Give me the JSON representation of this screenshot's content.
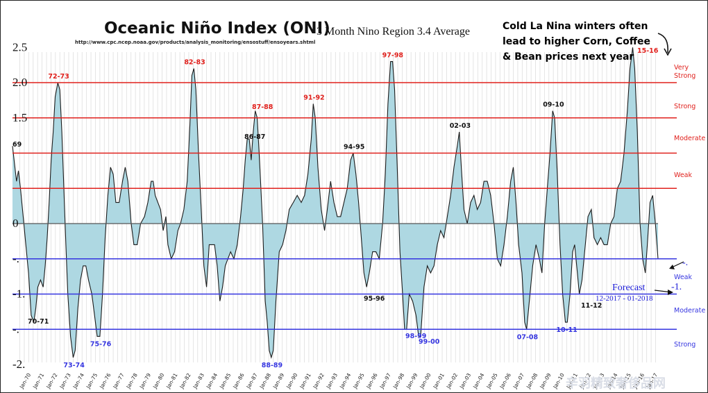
{
  "page": {
    "watermark": "辛羽精致奢侈品网"
  },
  "chart_data": {
    "type": "area",
    "title": "Oceanic Niño Index (ONI)",
    "subtitle": "3 Month Nino Region 3.4 Average",
    "source_url": "http://www.cpc.ncep.noaa.gov/products/analysis_monitoring/ensostuff/ensoyears.shtml",
    "annotation": "Cold La Nina winters often lead to higher Corn, Coffee & Bean prices next year",
    "ylim": [
      -2.5,
      2.5
    ],
    "y_tick_labels": [
      {
        "value": 2.5,
        "label": "2.5"
      },
      {
        "value": 2.0,
        "label": "2.0"
      },
      {
        "value": 1.5,
        "label": "1.5"
      },
      {
        "value": 0.0,
        "label": "0"
      },
      {
        "value": -0.5,
        "label": "-."
      },
      {
        "value": -1.0,
        "label": "-1."
      },
      {
        "value": -1.5,
        "label": "-."
      },
      {
        "value": -2.0,
        "label": "-2."
      }
    ],
    "x_tick_labels": [
      "Jan-70",
      "Jan-71",
      "Jan-72",
      "Jan-73",
      "Jan-74",
      "Jan-75",
      "Jan-76",
      "Jan-77",
      "Jan-78",
      "Jan-79",
      "Jan-80",
      "Jan-81",
      "Jan-82",
      "Jan-83",
      "Jan-84",
      "Jan-85",
      "Jan-86",
      "Jan-87",
      "Jan-88",
      "Jan-89",
      "Jan-90",
      "Jan-91",
      "Jan-92",
      "Jan-93",
      "Jan-94",
      "Jan-95",
      "Jan-96",
      "Jan-97",
      "Jan-98",
      "Jan-99",
      "Jan-00",
      "Jan-01",
      "Jan-02",
      "Jan-03",
      "Jan-04",
      "Jan-05",
      "Jan-06",
      "Jan-07",
      "Jan-08",
      "Jan-09",
      "Jan-10",
      "Jan-11",
      "Jan-12",
      "Jan-13",
      "Jan-14",
      "Jan-15",
      "Jan-16",
      "Jan-17"
    ],
    "thresholds": [
      {
        "value": 2.0,
        "label": "Very Strong",
        "color": "#e0201c"
      },
      {
        "value": 1.5,
        "label": "Strong",
        "color": "#e0201c"
      },
      {
        "value": 1.0,
        "label": "Moderate",
        "color": "#e0201c"
      },
      {
        "value": 0.5,
        "label": "Weak",
        "color": "#e0201c"
      },
      {
        "value": -0.5,
        "label": "Weak",
        "color": "#3535e0"
      },
      {
        "value": -1.0,
        "label": "Moderate",
        "color": "#3535e0"
      },
      {
        "value": -1.5,
        "label": "Strong",
        "color": "#3535e0"
      }
    ],
    "series": [
      {
        "fill": "#aed8e2",
        "stroke": "#1a1a1a",
        "points": [
          [
            1969.45,
            1.1
          ],
          [
            1969.6,
            0.85
          ],
          [
            1969.75,
            0.6
          ],
          [
            1969.9,
            0.75
          ],
          [
            1970.05,
            0.5
          ],
          [
            1970.25,
            0.1
          ],
          [
            1970.45,
            -0.3
          ],
          [
            1970.65,
            -0.7
          ],
          [
            1970.85,
            -1.3
          ],
          [
            1971.05,
            -1.4
          ],
          [
            1971.2,
            -1.2
          ],
          [
            1971.35,
            -0.9
          ],
          [
            1971.55,
            -0.8
          ],
          [
            1971.75,
            -0.9
          ],
          [
            1971.9,
            -0.6
          ],
          [
            1972.05,
            -0.2
          ],
          [
            1972.2,
            0.3
          ],
          [
            1972.35,
            0.9
          ],
          [
            1972.5,
            1.3
          ],
          [
            1972.65,
            1.8
          ],
          [
            1972.85,
            2.0
          ],
          [
            1973.0,
            1.9
          ],
          [
            1973.15,
            1.3
          ],
          [
            1973.3,
            0.5
          ],
          [
            1973.45,
            -0.3
          ],
          [
            1973.6,
            -1.0
          ],
          [
            1973.8,
            -1.6
          ],
          [
            1974.0,
            -1.9
          ],
          [
            1974.15,
            -1.8
          ],
          [
            1974.35,
            -1.2
          ],
          [
            1974.55,
            -0.8
          ],
          [
            1974.75,
            -0.6
          ],
          [
            1974.95,
            -0.6
          ],
          [
            1975.15,
            -0.8
          ],
          [
            1975.4,
            -1.0
          ],
          [
            1975.6,
            -1.3
          ],
          [
            1975.8,
            -1.6
          ],
          [
            1976.0,
            -1.6
          ],
          [
            1976.2,
            -1.0
          ],
          [
            1976.4,
            -0.2
          ],
          [
            1976.6,
            0.4
          ],
          [
            1976.8,
            0.8
          ],
          [
            1977.0,
            0.7
          ],
          [
            1977.2,
            0.3
          ],
          [
            1977.45,
            0.3
          ],
          [
            1977.7,
            0.6
          ],
          [
            1977.9,
            0.8
          ],
          [
            1978.1,
            0.6
          ],
          [
            1978.35,
            0.0
          ],
          [
            1978.55,
            -0.3
          ],
          [
            1978.8,
            -0.3
          ],
          [
            1979.05,
            0.0
          ],
          [
            1979.35,
            0.1
          ],
          [
            1979.6,
            0.3
          ],
          [
            1979.85,
            0.6
          ],
          [
            1980.0,
            0.6
          ],
          [
            1980.15,
            0.4
          ],
          [
            1980.35,
            0.3
          ],
          [
            1980.55,
            0.2
          ],
          [
            1980.75,
            -0.1
          ],
          [
            1980.95,
            0.1
          ],
          [
            1981.1,
            -0.3
          ],
          [
            1981.35,
            -0.5
          ],
          [
            1981.6,
            -0.4
          ],
          [
            1981.85,
            -0.1
          ],
          [
            1982.05,
            0.0
          ],
          [
            1982.3,
            0.2
          ],
          [
            1982.55,
            0.6
          ],
          [
            1982.75,
            1.4
          ],
          [
            1982.9,
            2.1
          ],
          [
            1983.05,
            2.2
          ],
          [
            1983.2,
            1.9
          ],
          [
            1983.4,
            1.0
          ],
          [
            1983.6,
            0.2
          ],
          [
            1983.8,
            -0.6
          ],
          [
            1984.0,
            -0.9
          ],
          [
            1984.2,
            -0.3
          ],
          [
            1984.4,
            -0.3
          ],
          [
            1984.6,
            -0.3
          ],
          [
            1984.8,
            -0.6
          ],
          [
            1985.0,
            -1.1
          ],
          [
            1985.2,
            -0.9
          ],
          [
            1985.4,
            -0.6
          ],
          [
            1985.6,
            -0.5
          ],
          [
            1985.8,
            -0.4
          ],
          [
            1986.05,
            -0.5
          ],
          [
            1986.3,
            -0.3
          ],
          [
            1986.55,
            0.1
          ],
          [
            1986.75,
            0.5
          ],
          [
            1986.9,
            0.9
          ],
          [
            1987.05,
            1.2
          ],
          [
            1987.2,
            1.2
          ],
          [
            1987.35,
            0.9
          ],
          [
            1987.5,
            1.3
          ],
          [
            1987.65,
            1.6
          ],
          [
            1987.8,
            1.5
          ],
          [
            1988.0,
            0.8
          ],
          [
            1988.2,
            0.0
          ],
          [
            1988.4,
            -1.1
          ],
          [
            1988.55,
            -1.4
          ],
          [
            1988.7,
            -1.8
          ],
          [
            1988.85,
            -1.9
          ],
          [
            1989.0,
            -1.8
          ],
          [
            1989.2,
            -1.1
          ],
          [
            1989.45,
            -0.4
          ],
          [
            1989.7,
            -0.3
          ],
          [
            1989.95,
            -0.1
          ],
          [
            1990.2,
            0.2
          ],
          [
            1990.5,
            0.3
          ],
          [
            1990.8,
            0.4
          ],
          [
            1991.1,
            0.3
          ],
          [
            1991.35,
            0.4
          ],
          [
            1991.6,
            0.7
          ],
          [
            1991.85,
            1.2
          ],
          [
            1992.0,
            1.7
          ],
          [
            1992.15,
            1.5
          ],
          [
            1992.35,
            0.8
          ],
          [
            1992.6,
            0.2
          ],
          [
            1992.85,
            -0.1
          ],
          [
            1993.05,
            0.2
          ],
          [
            1993.3,
            0.6
          ],
          [
            1993.55,
            0.3
          ],
          [
            1993.8,
            0.1
          ],
          [
            1994.05,
            0.1
          ],
          [
            1994.3,
            0.3
          ],
          [
            1994.55,
            0.5
          ],
          [
            1994.8,
            0.9
          ],
          [
            1995.0,
            1.0
          ],
          [
            1995.2,
            0.7
          ],
          [
            1995.4,
            0.3
          ],
          [
            1995.6,
            -0.2
          ],
          [
            1995.8,
            -0.7
          ],
          [
            1996.0,
            -0.9
          ],
          [
            1996.2,
            -0.7
          ],
          [
            1996.45,
            -0.4
          ],
          [
            1996.7,
            -0.4
          ],
          [
            1996.95,
            -0.5
          ],
          [
            1997.2,
            0.0
          ],
          [
            1997.4,
            0.7
          ],
          [
            1997.6,
            1.7
          ],
          [
            1997.8,
            2.3
          ],
          [
            1997.95,
            2.3
          ],
          [
            1998.1,
            1.9
          ],
          [
            1998.3,
            0.8
          ],
          [
            1998.5,
            -0.4
          ],
          [
            1998.7,
            -1.0
          ],
          [
            1998.85,
            -1.5
          ],
          [
            1999.0,
            -1.5
          ],
          [
            1999.2,
            -1.0
          ],
          [
            1999.45,
            -1.1
          ],
          [
            1999.7,
            -1.3
          ],
          [
            1999.9,
            -1.6
          ],
          [
            2000.05,
            -1.6
          ],
          [
            2000.3,
            -0.9
          ],
          [
            2000.55,
            -0.6
          ],
          [
            2000.8,
            -0.7
          ],
          [
            2001.05,
            -0.6
          ],
          [
            2001.3,
            -0.3
          ],
          [
            2001.55,
            -0.1
          ],
          [
            2001.8,
            -0.2
          ],
          [
            2002.05,
            0.1
          ],
          [
            2002.3,
            0.4
          ],
          [
            2002.55,
            0.8
          ],
          [
            2002.8,
            1.1
          ],
          [
            2002.95,
            1.3
          ],
          [
            2003.1,
            0.8
          ],
          [
            2003.3,
            0.2
          ],
          [
            2003.55,
            0.0
          ],
          [
            2003.8,
            0.3
          ],
          [
            2004.05,
            0.4
          ],
          [
            2004.3,
            0.2
          ],
          [
            2004.55,
            0.3
          ],
          [
            2004.8,
            0.6
          ],
          [
            2005.05,
            0.6
          ],
          [
            2005.3,
            0.4
          ],
          [
            2005.55,
            0.0
          ],
          [
            2005.8,
            -0.5
          ],
          [
            2006.05,
            -0.6
          ],
          [
            2006.3,
            -0.3
          ],
          [
            2006.55,
            0.1
          ],
          [
            2006.8,
            0.6
          ],
          [
            2007.0,
            0.8
          ],
          [
            2007.2,
            0.3
          ],
          [
            2007.4,
            -0.3
          ],
          [
            2007.65,
            -0.7
          ],
          [
            2007.85,
            -1.4
          ],
          [
            2008.0,
            -1.5
          ],
          [
            2008.2,
            -1.1
          ],
          [
            2008.45,
            -0.6
          ],
          [
            2008.7,
            -0.3
          ],
          [
            2008.95,
            -0.5
          ],
          [
            2009.15,
            -0.7
          ],
          [
            2009.35,
            0.0
          ],
          [
            2009.55,
            0.5
          ],
          [
            2009.75,
            1.0
          ],
          [
            2009.95,
            1.6
          ],
          [
            2010.1,
            1.5
          ],
          [
            2010.3,
            0.7
          ],
          [
            2010.5,
            -0.3
          ],
          [
            2010.7,
            -1.0
          ],
          [
            2010.9,
            -1.4
          ],
          [
            2011.05,
            -1.4
          ],
          [
            2011.25,
            -1.0
          ],
          [
            2011.45,
            -0.4
          ],
          [
            2011.6,
            -0.3
          ],
          [
            2011.8,
            -0.7
          ],
          [
            2011.95,
            -1.0
          ],
          [
            2012.15,
            -0.8
          ],
          [
            2012.35,
            -0.4
          ],
          [
            2012.6,
            0.1
          ],
          [
            2012.85,
            0.2
          ],
          [
            2013.05,
            -0.2
          ],
          [
            2013.3,
            -0.3
          ],
          [
            2013.55,
            -0.2
          ],
          [
            2013.8,
            -0.3
          ],
          [
            2014.05,
            -0.3
          ],
          [
            2014.3,
            0.0
          ],
          [
            2014.55,
            0.1
          ],
          [
            2014.8,
            0.5
          ],
          [
            2015.05,
            0.6
          ],
          [
            2015.3,
            1.0
          ],
          [
            2015.55,
            1.6
          ],
          [
            2015.75,
            2.2
          ],
          [
            2015.95,
            2.5
          ],
          [
            2016.1,
            2.2
          ],
          [
            2016.3,
            1.3
          ],
          [
            2016.5,
            0.0
          ],
          [
            2016.7,
            -0.5
          ],
          [
            2016.9,
            -0.7
          ],
          [
            2017.05,
            -0.3
          ],
          [
            2017.25,
            0.3
          ],
          [
            2017.45,
            0.4
          ],
          [
            2017.65,
            0.0
          ],
          [
            2017.85,
            -0.5
          ]
        ]
      }
    ],
    "event_labels": [
      {
        "text": "69",
        "x": 1969.5,
        "y": 1.15,
        "color": "#111"
      },
      {
        "text": "70-71",
        "x": 1971.0,
        "y": -1.4,
        "color": "#111"
      },
      {
        "text": "72-73",
        "x": 1972.85,
        "y": 2.0,
        "color": "#e0201c"
      },
      {
        "text": "73-74",
        "x": 1974.0,
        "y": -1.9,
        "color": "#3535e0"
      },
      {
        "text": "75-76",
        "x": 1976.0,
        "y": -1.6,
        "color": "#3535e0"
      },
      {
        "text": "82-83",
        "x": 1983.05,
        "y": 2.2,
        "color": "#e0201c"
      },
      {
        "text": "86-87",
        "x": 1987.3,
        "y": 1.2,
        "color": "#111"
      },
      {
        "text": "87-88",
        "x": 1987.7,
        "y": 1.6,
        "color": "#e0201c"
      },
      {
        "text": "88-89",
        "x": 1988.85,
        "y": -1.9,
        "color": "#3535e0"
      },
      {
        "text": "91-92",
        "x": 1992.0,
        "y": 1.7,
        "color": "#e0201c"
      },
      {
        "text": "94-95",
        "x": 1995.0,
        "y": 1.0,
        "color": "#111"
      },
      {
        "text": "95-96",
        "x": 1996.0,
        "y": -0.9,
        "color": "#111"
      },
      {
        "text": "97-98",
        "x": 1997.9,
        "y": 2.3,
        "color": "#e0201c"
      },
      {
        "text": "98-99",
        "x": 1999.0,
        "y": -1.5,
        "color": "#3535e0"
      },
      {
        "text": "99-00",
        "x": 2000.05,
        "y": -1.6,
        "color": "#3535e0"
      },
      {
        "text": "02-03",
        "x": 2002.95,
        "y": 1.3,
        "color": "#111"
      },
      {
        "text": "07-08",
        "x": 2008.0,
        "y": -1.5,
        "color": "#3535e0"
      },
      {
        "text": "09-10",
        "x": 2009.95,
        "y": 1.6,
        "color": "#111"
      },
      {
        "text": "10-11",
        "x": 2010.95,
        "y": -1.4,
        "color": "#3535e0"
      },
      {
        "text": "11-12",
        "x": 2012.0,
        "y": -1.0,
        "color": "#111"
      },
      {
        "text": "15-16",
        "x": 2016.0,
        "y": 2.5,
        "color": "#e0201c"
      }
    ],
    "forecast": {
      "label": "Forecast",
      "dates": "12-2017 - 01-2018",
      "value_label": "-1.",
      "value": -1.0
    },
    "weak_marker_label": "-.",
    "grid": true
  }
}
